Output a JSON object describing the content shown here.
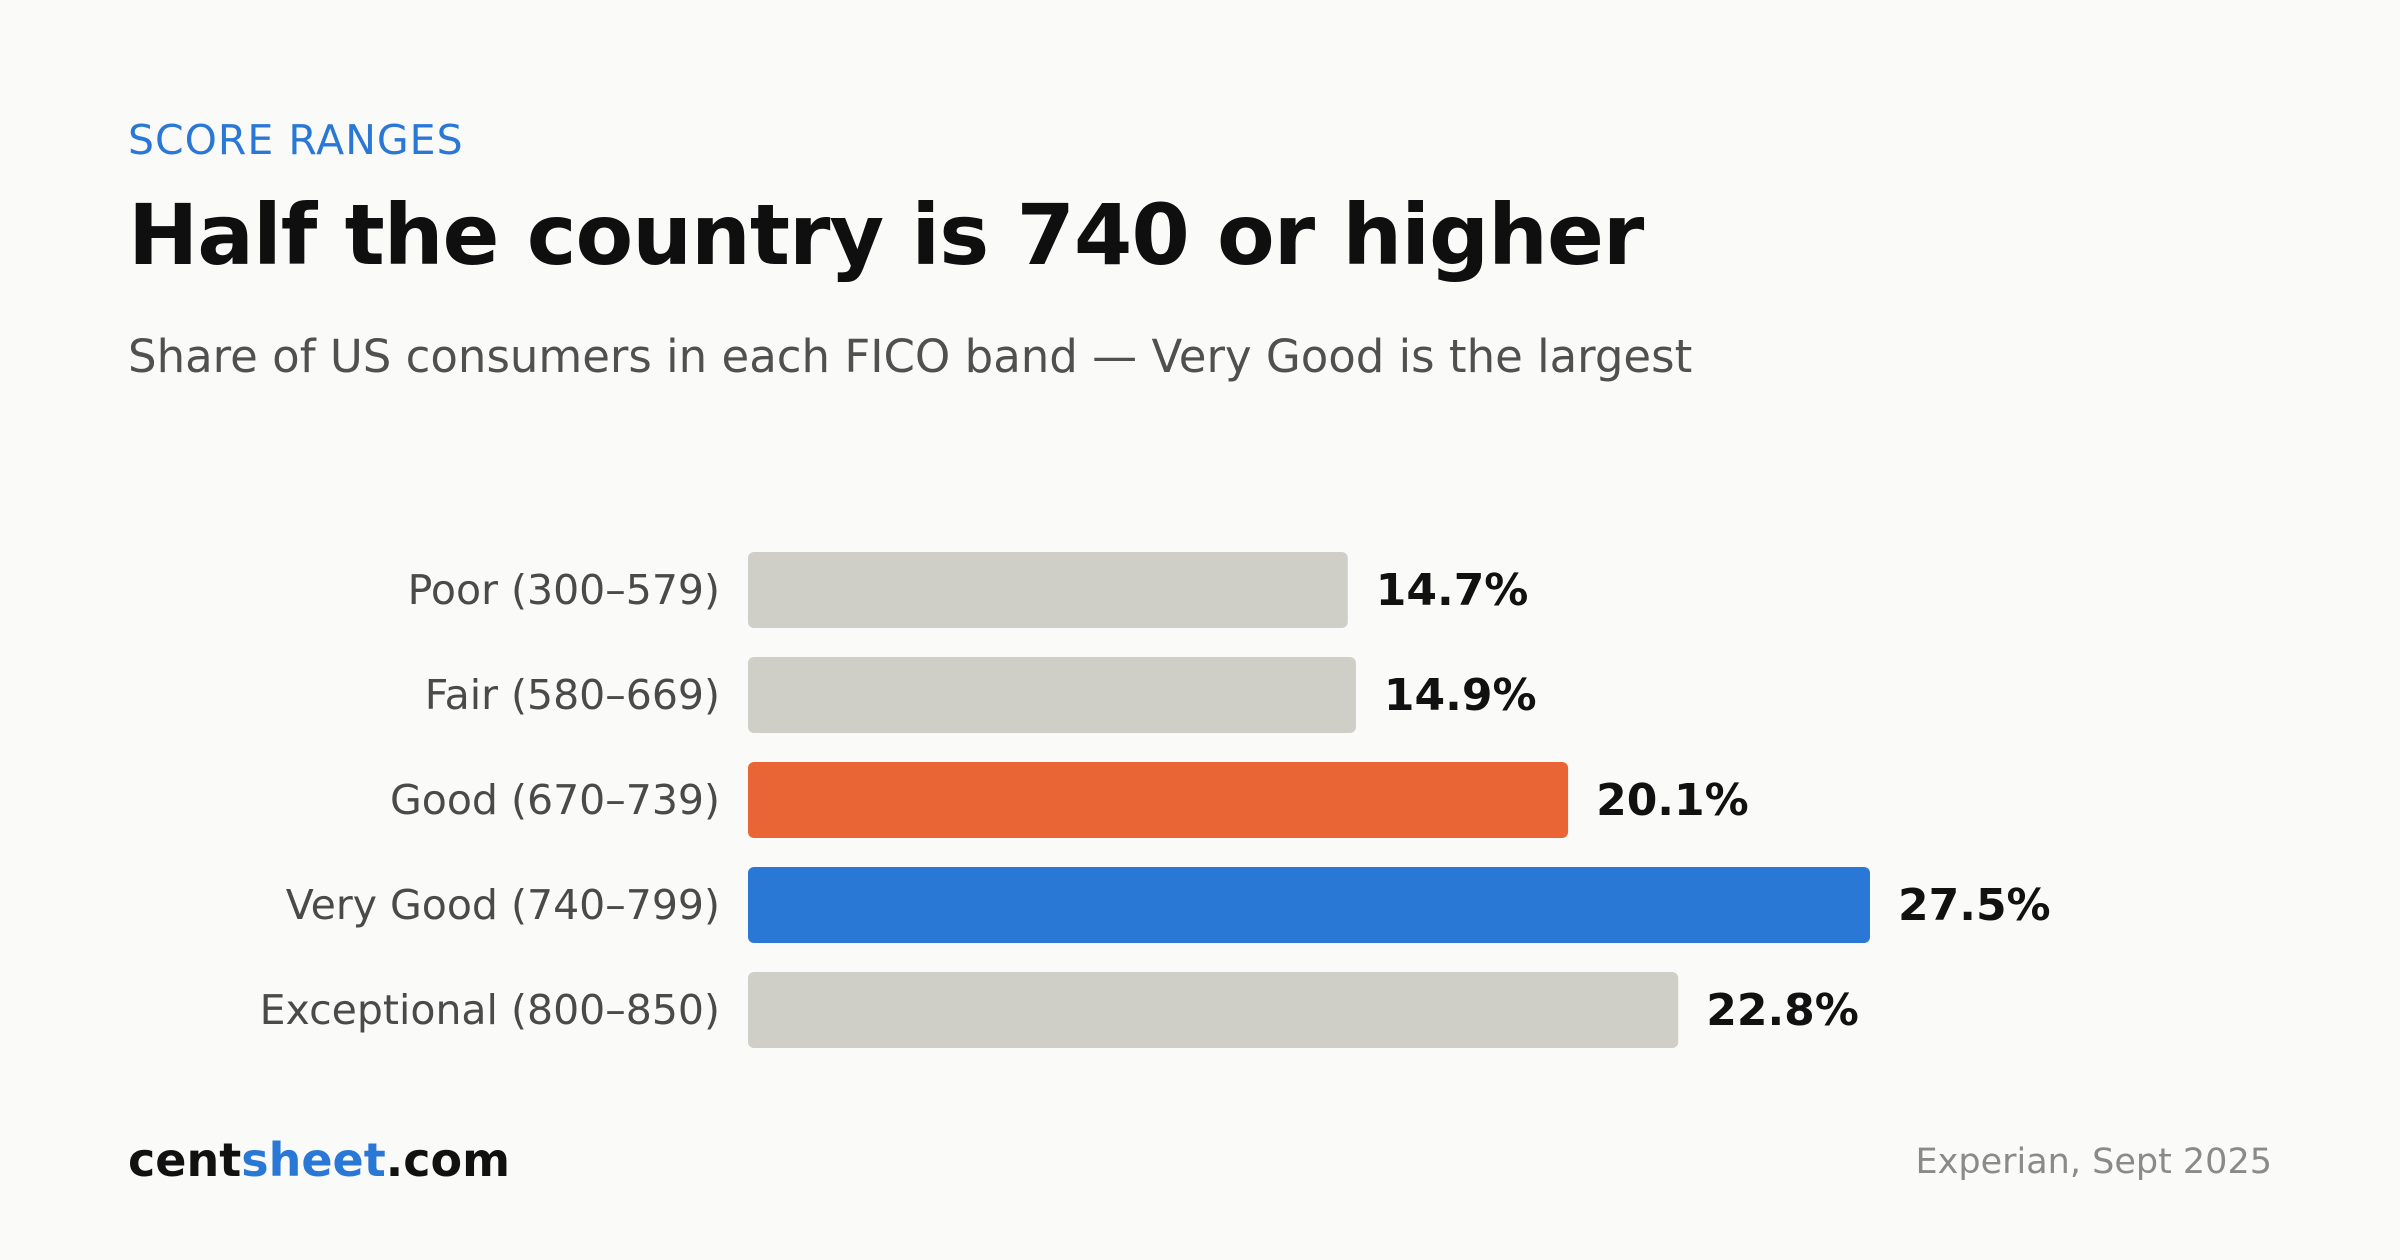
{
  "header": {
    "eyebrow": "SCORE RANGES",
    "title": "Half the country is 740 or higher",
    "subtitle": "Share of US consumers in each FICO band — Very Good is the largest"
  },
  "footer": {
    "brand_part1": "cent",
    "brand_part2": "sheet",
    "brand_part3": ".com",
    "source": "Experian, Sept 2025"
  },
  "colors": {
    "default_bar": "#d0cfc7",
    "highlight_orange": "#e96535",
    "highlight_blue": "#2a78d6",
    "accent": "#2a78d6"
  },
  "chart_data": {
    "type": "bar",
    "orientation": "horizontal",
    "categories": [
      "Poor (300–579)",
      "Fair (580–669)",
      "Good (670–739)",
      "Very Good (740–799)",
      "Exceptional (800–850)"
    ],
    "values": [
      14.7,
      14.9,
      20.1,
      27.5,
      22.8
    ],
    "value_labels": [
      "14.7%",
      "14.9%",
      "20.1%",
      "27.5%",
      "22.8%"
    ],
    "bar_colors": [
      "#d0cfc7",
      "#d0cfc7",
      "#e96535",
      "#2a78d6",
      "#d0cfc7"
    ],
    "unit": "%",
    "grid": false,
    "legend": "none"
  }
}
